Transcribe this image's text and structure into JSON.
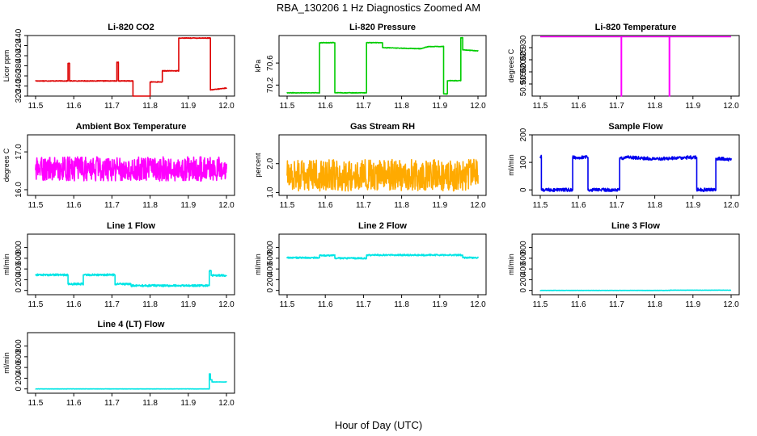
{
  "title": "RBA_130206  1 Hz Diagnostics Zoomed AM",
  "xlabel": "Hour of Day (UTC)",
  "chart_data": [
    {
      "type": "line",
      "title": "Li-820 CO2",
      "ylabel": "Licor ppm",
      "color": "#dd0000",
      "xlim": [
        11.5,
        12.0
      ],
      "ylim": [
        320,
        440
      ],
      "yticks": [
        320,
        340,
        360,
        380,
        400,
        420,
        440
      ],
      "noise": 0.6,
      "x": [
        11.5,
        11.585,
        11.585,
        11.589,
        11.589,
        11.713,
        11.713,
        11.717,
        11.717,
        11.755,
        11.755,
        11.8,
        11.8,
        11.832,
        11.832,
        11.875,
        11.875,
        11.958,
        11.958,
        12.0
      ],
      "y": [
        350,
        350,
        385,
        385,
        350,
        350,
        387,
        387,
        350,
        350,
        319,
        319,
        348,
        348,
        370,
        370,
        435,
        435,
        332,
        336
      ]
    },
    {
      "type": "line",
      "title": "Li-820 Pressure",
      "ylabel": "kPa",
      "color": "#00cc00",
      "xlim": [
        11.5,
        12.0
      ],
      "ylim": [
        70.0,
        71.1
      ],
      "yticks": [
        70.2,
        70.6
      ],
      "yticklabels": [
        "70.2",
        "70.6"
      ],
      "noise": 0.005,
      "x": [
        11.5,
        11.585,
        11.585,
        11.625,
        11.625,
        11.708,
        11.708,
        11.75,
        11.75,
        11.85,
        11.87,
        11.91,
        11.91,
        11.92,
        11.92,
        11.955,
        11.955,
        11.96,
        11.96,
        12.0
      ],
      "y": [
        70.06,
        70.06,
        70.97,
        70.97,
        70.06,
        70.06,
        70.97,
        70.97,
        70.88,
        70.86,
        70.9,
        70.9,
        70.04,
        70.04,
        70.28,
        70.28,
        71.06,
        71.06,
        70.84,
        70.82
      ]
    },
    {
      "type": "line",
      "title": "Li-820 Temperature",
      "ylabel": "degrees C",
      "color": "#ff00ff",
      "xlim": [
        11.5,
        12.0
      ],
      "ylim": [
        50.91,
        50.935
      ],
      "yticks": [
        50.915,
        50.92,
        50.925,
        50.93
      ],
      "yticklabels": [
        "50.915",
        "50.920",
        "50.925",
        "50.930"
      ],
      "noise": 0,
      "x": [
        11.5,
        11.712,
        11.712,
        11.713,
        11.713,
        11.838,
        11.838,
        11.839,
        11.839,
        12.0
      ],
      "y": [
        50.9345,
        50.9345,
        50.91,
        50.91,
        50.9345,
        50.9345,
        50.91,
        50.91,
        50.9345,
        50.9345
      ]
    },
    {
      "type": "line",
      "title": "Ambient Box Temperature",
      "ylabel": "degrees C",
      "color": "#ff00ff",
      "xlim": [
        11.5,
        12.0
      ],
      "ylim": [
        15.85,
        17.45
      ],
      "yticks": [
        16.0,
        17.0
      ],
      "yticklabels": [
        "16.0",
        "17.0"
      ],
      "noise": 0.32,
      "x": [
        11.5,
        12.0
      ],
      "y": [
        16.55,
        16.55
      ]
    },
    {
      "type": "line",
      "title": "Gas Stream RH",
      "ylabel": "percent",
      "color": "#ffaa00",
      "xlim": [
        11.5,
        12.0
      ],
      "ylim": [
        0.9,
        3.0
      ],
      "yticks": [
        1.0,
        2.0
      ],
      "yticklabels": [
        "1.0",
        "2.0"
      ],
      "noise": 0.55,
      "x": [
        11.5,
        12.0
      ],
      "y": [
        1.6,
        1.6
      ]
    },
    {
      "type": "line",
      "title": "Sample Flow",
      "ylabel": "ml/min",
      "color": "#0000ee",
      "xlim": [
        11.5,
        12.0
      ],
      "ylim": [
        -20,
        200
      ],
      "yticks": [
        0,
        100,
        200
      ],
      "noise": 6,
      "x": [
        11.5,
        11.503,
        11.503,
        11.585,
        11.585,
        11.625,
        11.625,
        11.708,
        11.708,
        11.72,
        11.72,
        11.8,
        11.88,
        11.91,
        11.91,
        11.96,
        11.96,
        12.0
      ],
      "y": [
        120,
        120,
        0,
        0,
        118,
        118,
        0,
        0,
        115,
        115,
        120,
        112,
        118,
        118,
        0,
        0,
        115,
        110
      ]
    },
    {
      "type": "line",
      "title": "Line 1 Flow",
      "ylabel": "ml/min",
      "color": "#00e5e5",
      "xlim": [
        11.5,
        12.0
      ],
      "ylim": [
        -80,
        1050
      ],
      "yticks": [
        0,
        200,
        400,
        600,
        800
      ],
      "noise": 18,
      "x": [
        11.5,
        11.585,
        11.585,
        11.625,
        11.625,
        11.708,
        11.708,
        11.75,
        11.75,
        11.955,
        11.955,
        11.96,
        11.96,
        12.0
      ],
      "y": [
        290,
        290,
        120,
        120,
        290,
        290,
        120,
        120,
        90,
        90,
        360,
        360,
        280,
        280
      ]
    },
    {
      "type": "line",
      "title": "Line 2 Flow",
      "ylabel": "ml/min",
      "color": "#00e5e5",
      "xlim": [
        11.5,
        12.0
      ],
      "ylim": [
        -80,
        1050
      ],
      "yticks": [
        0,
        200,
        400,
        600,
        800
      ],
      "noise": 14,
      "x": [
        11.5,
        11.585,
        11.585,
        11.625,
        11.625,
        11.708,
        11.708,
        11.96,
        11.96,
        12.0
      ],
      "y": [
        610,
        610,
        650,
        650,
        600,
        600,
        660,
        660,
        610,
        610
      ]
    },
    {
      "type": "line",
      "title": "Line 3 Flow",
      "ylabel": "ml/min",
      "color": "#00e5e5",
      "xlim": [
        11.5,
        12.0
      ],
      "ylim": [
        -80,
        1050
      ],
      "yticks": [
        0,
        200,
        400,
        600,
        800
      ],
      "noise": 2,
      "x": [
        11.5,
        11.84,
        11.84,
        12.0
      ],
      "y": [
        0,
        0,
        4,
        4
      ]
    },
    {
      "type": "line",
      "title": "Line 4 (LT) Flow",
      "ylabel": "ml/min",
      "color": "#00e5e5",
      "xlim": [
        11.5,
        12.0
      ],
      "ylim": [
        -80,
        1050
      ],
      "yticks": [
        0,
        200,
        400,
        600,
        800
      ],
      "noise": 2,
      "x": [
        11.5,
        11.955,
        11.955,
        11.958,
        11.958,
        11.962,
        11.962,
        12.0
      ],
      "y": [
        0,
        0,
        280,
        280,
        170,
        170,
        130,
        130
      ]
    }
  ],
  "xticks": [
    11.5,
    11.6,
    11.7,
    11.8,
    11.9,
    12.0
  ],
  "xticklabels": [
    "11.5",
    "11.6",
    "11.7",
    "11.8",
    "11.9",
    "12.0"
  ]
}
